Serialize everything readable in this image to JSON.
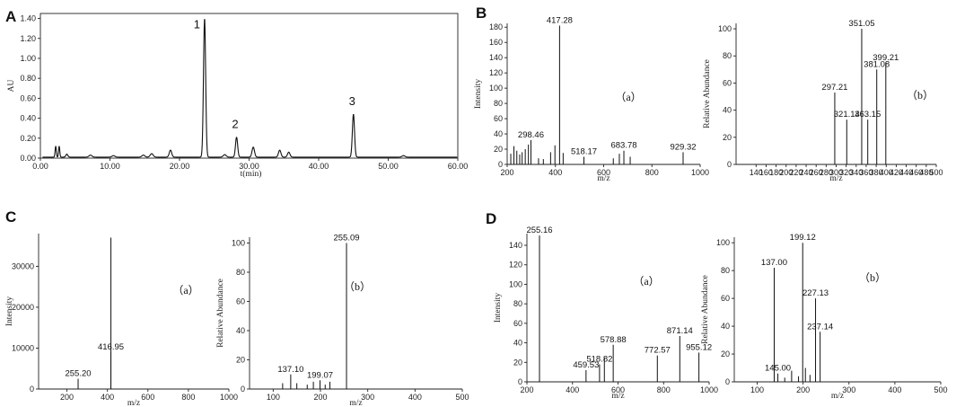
{
  "panel_letters": [
    "A",
    "B",
    "C",
    "D"
  ],
  "chart_data": [
    {
      "id": "A",
      "type": "line",
      "xlabel": "t(min)",
      "ylabel": "AU",
      "xlim": [
        0,
        60
      ],
      "ylim": [
        0,
        1.45
      ],
      "xticks": [
        0,
        10,
        20,
        30,
        40,
        50,
        60
      ],
      "xtick_labels": [
        "0.00",
        "10.00",
        "20.00",
        "30.00",
        "40.00",
        "50.00",
        "60.00"
      ],
      "yticks": [
        0,
        0.2,
        0.4,
        0.6,
        0.8,
        1.0,
        1.2,
        1.4
      ],
      "ytick_labels": [
        "0.00",
        "0.20",
        "0.40",
        "0.60",
        "0.80",
        "1.00",
        "1.20",
        "1.40"
      ],
      "peaks": [
        {
          "x": 2.2,
          "y": 0.11,
          "w": 0.12
        },
        {
          "x": 2.7,
          "y": 0.11,
          "w": 0.12
        },
        {
          "x": 3.8,
          "y": 0.03,
          "w": 0.2
        },
        {
          "x": 7.2,
          "y": 0.02,
          "w": 0.3
        },
        {
          "x": 10.5,
          "y": 0.015,
          "w": 0.3
        },
        {
          "x": 14.8,
          "y": 0.02,
          "w": 0.3
        },
        {
          "x": 16.0,
          "y": 0.035,
          "w": 0.3
        },
        {
          "x": 18.7,
          "y": 0.07,
          "w": 0.25
        },
        {
          "x": 23.6,
          "y": 1.39,
          "w": 0.22
        },
        {
          "x": 26.5,
          "y": 0.025,
          "w": 0.3
        },
        {
          "x": 28.2,
          "y": 0.2,
          "w": 0.22
        },
        {
          "x": 30.6,
          "y": 0.1,
          "w": 0.25
        },
        {
          "x": 34.4,
          "y": 0.07,
          "w": 0.25
        },
        {
          "x": 35.7,
          "y": 0.05,
          "w": 0.25
        },
        {
          "x": 45.0,
          "y": 0.43,
          "w": 0.22
        },
        {
          "x": 52.2,
          "y": 0.015,
          "w": 0.3
        }
      ],
      "annotations": [
        {
          "text": "1",
          "x": 22.5,
          "y": 1.3
        },
        {
          "text": "2",
          "x": 28.0,
          "y": 0.3
        },
        {
          "text": "3",
          "x": 44.8,
          "y": 0.53
        }
      ]
    },
    {
      "id": "B-a",
      "type": "bar",
      "sublabel": "（a）",
      "xlabel": "m/z",
      "ylabel": "Intensity",
      "xlim": [
        200,
        1000
      ],
      "ylim": [
        0,
        185
      ],
      "xticks": [
        200,
        400,
        600,
        800,
        1000
      ],
      "yticks": [
        0,
        20,
        40,
        60,
        80,
        100,
        120,
        140,
        160,
        180
      ],
      "peaks": [
        [
          215,
          14
        ],
        [
          228,
          24
        ],
        [
          240,
          18
        ],
        [
          252,
          13
        ],
        [
          262,
          16
        ],
        [
          275,
          20
        ],
        [
          288,
          26
        ],
        [
          298.46,
          32
        ],
        [
          330,
          8
        ],
        [
          350,
          7
        ],
        [
          380,
          16
        ],
        [
          398,
          25
        ],
        [
          417.28,
          182
        ],
        [
          432,
          15
        ],
        [
          518.17,
          10
        ],
        [
          640,
          8
        ],
        [
          665,
          14
        ],
        [
          683.78,
          18
        ],
        [
          710,
          10
        ],
        [
          929.32,
          16
        ]
      ],
      "labels": [
        [
          298.46,
          "298.46"
        ],
        [
          417.28,
          "417.28"
        ],
        [
          518.17,
          "518.17"
        ],
        [
          683.78,
          "683.78"
        ],
        [
          929.32,
          "929.32"
        ]
      ]
    },
    {
      "id": "B-b",
      "type": "bar",
      "sublabel": "（b）",
      "xlabel": "m/z",
      "ylabel": "Relative Abundance",
      "xlim": [
        100,
        500
      ],
      "ylim": [
        0,
        104
      ],
      "xticks": [
        140,
        160,
        180,
        200,
        220,
        240,
        260,
        280,
        300,
        320,
        340,
        360,
        380,
        400,
        420,
        440,
        460,
        480,
        500
      ],
      "yticks": [
        0,
        20,
        40,
        60,
        80,
        100
      ],
      "peaks": [
        [
          297.21,
          53
        ],
        [
          321.14,
          33
        ],
        [
          351.05,
          100
        ],
        [
          363.15,
          33
        ],
        [
          381.08,
          70
        ],
        [
          399.21,
          75
        ]
      ],
      "labels": [
        [
          297.21,
          "297.21"
        ],
        [
          321.14,
          "321.14"
        ],
        [
          351.05,
          "351.05"
        ],
        [
          363.15,
          "363.15"
        ],
        [
          381.08,
          "381.08"
        ],
        [
          399.21,
          "399.21"
        ]
      ]
    },
    {
      "id": "C-a",
      "type": "bar",
      "sublabel": "（a）",
      "xlabel": "m/z",
      "ylabel": "Intensity",
      "xlim": [
        60,
        1000
      ],
      "ylim": [
        0,
        38000
      ],
      "xticks": [
        200,
        400,
        600,
        800,
        1000
      ],
      "yticks": [
        0,
        10000,
        20000,
        30000
      ],
      "peaks": [
        [
          255.2,
          2500
        ],
        [
          416.95,
          9000
        ],
        [
          417.2,
          37000
        ]
      ],
      "labels": [
        [
          255.2,
          "255.20"
        ],
        [
          416.95,
          "416.95"
        ]
      ]
    },
    {
      "id": "C-b",
      "type": "bar",
      "sublabel": "（b）",
      "xlabel": "m/z",
      "ylabel": "Relative Abundance",
      "xlim": [
        50,
        500
      ],
      "ylim": [
        0,
        104
      ],
      "xticks": [
        100,
        200,
        300,
        400,
        500
      ],
      "yticks": [
        0,
        20,
        40,
        60,
        80,
        100
      ],
      "peaks": [
        [
          120,
          4
        ],
        [
          137.1,
          10
        ],
        [
          150,
          4
        ],
        [
          172,
          3
        ],
        [
          185,
          5
        ],
        [
          199.07,
          6
        ],
        [
          210,
          3
        ],
        [
          220,
          5
        ],
        [
          255.09,
          100
        ]
      ],
      "labels": [
        [
          137.1,
          "137.10"
        ],
        [
          199.07,
          "199.07"
        ],
        [
          255.09,
          "255.09"
        ]
      ]
    },
    {
      "id": "D-a",
      "type": "bar",
      "sublabel": "（a）",
      "xlabel": "m/z",
      "ylabel": "Intensity",
      "xlim": [
        200,
        1000
      ],
      "ylim": [
        0,
        152
      ],
      "xticks": [
        200,
        400,
        600,
        800,
        1000
      ],
      "yticks": [
        0,
        20,
        40,
        60,
        80,
        100,
        120,
        140
      ],
      "peaks": [
        [
          255.16,
          150
        ],
        [
          459.53,
          12
        ],
        [
          518.82,
          18
        ],
        [
          540,
          25
        ],
        [
          578.88,
          38
        ],
        [
          772.57,
          27
        ],
        [
          871.14,
          47
        ],
        [
          955.12,
          30
        ]
      ],
      "labels": [
        [
          255.16,
          "255.16"
        ],
        [
          459.53,
          "459.53"
        ],
        [
          518.82,
          "518.82"
        ],
        [
          578.88,
          "578.88"
        ],
        [
          772.57,
          "772.57"
        ],
        [
          871.14,
          "871.14"
        ],
        [
          955.12,
          "955.12"
        ]
      ]
    },
    {
      "id": "D-b",
      "type": "bar",
      "sublabel": "（b）",
      "xlabel": "m/z",
      "ylabel": "Relative Abundance",
      "xlim": [
        50,
        500
      ],
      "ylim": [
        0,
        104
      ],
      "xticks": [
        100,
        200,
        300,
        400,
        500
      ],
      "yticks": [
        0,
        20,
        40,
        60,
        80,
        100
      ],
      "peaks": [
        [
          137.0,
          82
        ],
        [
          145.0,
          6
        ],
        [
          160,
          3
        ],
        [
          175,
          8
        ],
        [
          190,
          4
        ],
        [
          199.12,
          100
        ],
        [
          205,
          10
        ],
        [
          215,
          5
        ],
        [
          227.13,
          60
        ],
        [
          237.14,
          36
        ]
      ],
      "labels": [
        [
          137.0,
          "137.00"
        ],
        [
          145.0,
          "145.00"
        ],
        [
          199.12,
          "199.12"
        ],
        [
          227.13,
          "227.13"
        ],
        [
          237.14,
          "237.14"
        ]
      ]
    }
  ]
}
